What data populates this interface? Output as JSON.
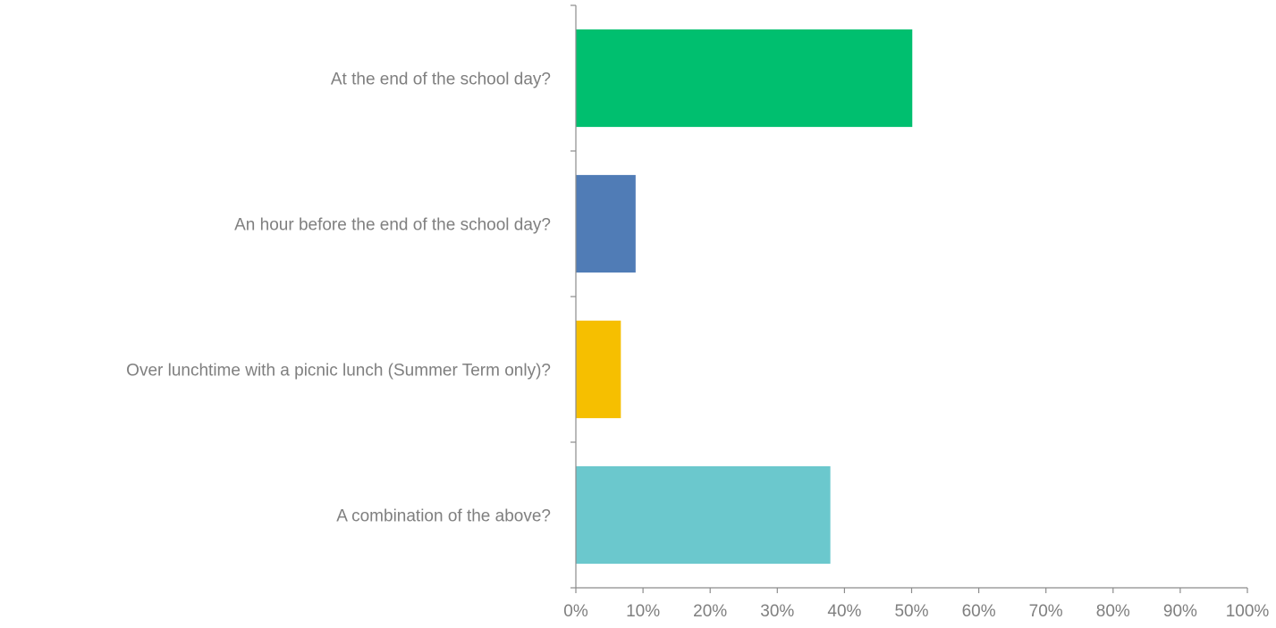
{
  "chart_data": {
    "type": "bar",
    "orientation": "horizontal",
    "categories": [
      "At the end of the school day?",
      "An hour before the end of the school day?",
      "Over lunchtime with a picnic lunch (Summer Term only)?",
      "A combination of the above?"
    ],
    "values": [
      50.1,
      8.9,
      6.7,
      37.9
    ],
    "unit": "%",
    "colors": [
      "#00bf6f",
      "#507cb6",
      "#f6bf00",
      "#6bc8cd"
    ],
    "xlim": [
      0,
      100
    ],
    "xticks": [
      "0%",
      "10%",
      "20%",
      "30%",
      "40%",
      "50%",
      "60%",
      "70%",
      "80%",
      "90%",
      "100%"
    ],
    "grid": false,
    "legend": "none"
  }
}
